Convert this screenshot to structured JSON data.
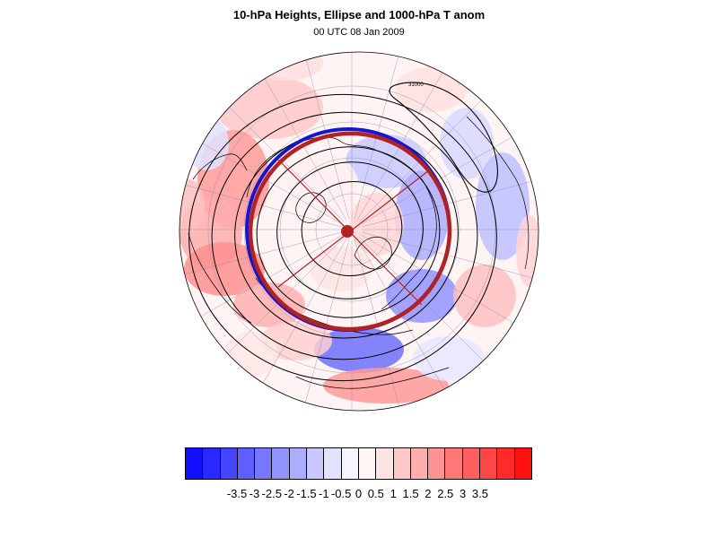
{
  "title": "10-hPa Heights, Ellipse and 1000-hPa T anom",
  "subtitle": "00 UTC 08 Jan 2009",
  "map": {
    "projection": "north-polar-stereographic",
    "fill_field": "1000-hPa temperature anomaly",
    "contour_field": "10-hPa geopotential height",
    "contour_label": "31000",
    "ellipse_color": "#b22222",
    "contour_color": "#000000",
    "coast_color": "#000000",
    "grid_color": "#8a8aa8"
  },
  "colorbar": {
    "colors": [
      "#1010ff",
      "#2a2aff",
      "#4545ff",
      "#5f5fff",
      "#7878ff",
      "#9393ff",
      "#adadff",
      "#c8c8ff",
      "#e2e2ff",
      "#f5f5ff",
      "#fff5f5",
      "#ffe2e2",
      "#ffc8c8",
      "#ffadad",
      "#ff9393",
      "#ff7878",
      "#ff5f5f",
      "#ff4545",
      "#ff2a2a",
      "#ff1010"
    ],
    "labels": [
      "-3.5",
      "-3",
      "-2.5",
      "-2",
      "-1.5",
      "-1",
      "-0.5",
      "0",
      "0.5",
      "1",
      "1.5",
      "2",
      "2.5",
      "3",
      "3.5"
    ]
  }
}
